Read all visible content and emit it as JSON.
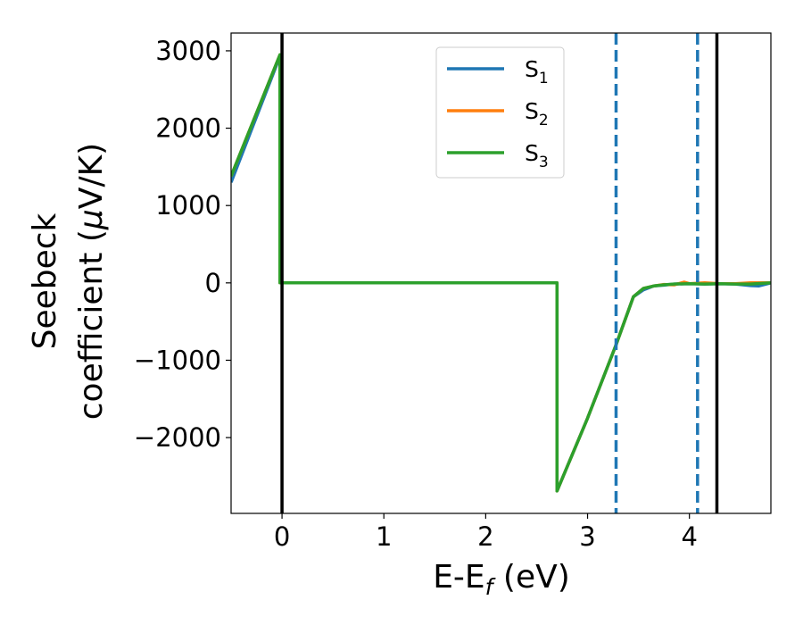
{
  "chart_data": {
    "type": "line",
    "xlabel": {
      "main": "E-E",
      "sub": "f",
      "unit": " (eV)"
    },
    "ylabel": {
      "line1": "Seebeck",
      "line2_prefix": "coefficient  (",
      "mu": "μ",
      "line2_suffix": "V/K)"
    },
    "xlim": [
      -0.5,
      4.8
    ],
    "ylim": [
      -2980,
      3230
    ],
    "xticks": [
      0,
      1,
      2,
      3,
      4
    ],
    "yticks": [
      -2000,
      -1000,
      0,
      1000,
      2000,
      3000
    ],
    "ytick_labels": [
      "−2000",
      "−1000",
      "0",
      "1000",
      "2000",
      "3000"
    ],
    "grid": false,
    "legend_position": "upper-center",
    "vlines_solid": [
      0,
      4.27
    ],
    "vlines_dashed": [
      3.28,
      4.08
    ],
    "vline_solid_color": "#000000",
    "vline_dashed_color": "#1f77b4",
    "series": [
      {
        "name": "S",
        "sub": "1",
        "color": "#1f77b4",
        "x": [
          -0.5,
          -0.02,
          -0.02,
          2.7,
          2.7,
          3.0,
          3.28,
          3.45,
          3.55,
          3.65,
          3.75,
          3.85,
          4.0,
          4.15,
          4.3,
          4.45,
          4.6,
          4.68,
          4.8
        ],
        "y": [
          1300,
          2930,
          0,
          0,
          -2690,
          -1750,
          -800,
          -180,
          -90,
          -40,
          -30,
          -15,
          -10,
          -15,
          -10,
          -15,
          -35,
          -40,
          0
        ]
      },
      {
        "name": "S",
        "sub": "2",
        "color": "#ff7f0e",
        "x": [
          -0.5,
          -0.02,
          -0.02,
          2.7,
          2.7,
          3.0,
          3.28,
          3.45,
          3.55,
          3.65,
          3.75,
          3.85,
          3.95,
          4.0,
          4.15,
          4.3,
          4.45,
          4.6,
          4.8
        ],
        "y": [
          1380,
          2950,
          0,
          0,
          -2690,
          -1750,
          -800,
          -180,
          -70,
          -40,
          -20,
          -25,
          10,
          -10,
          0,
          -10,
          -10,
          0,
          0
        ]
      },
      {
        "name": "S",
        "sub": "3",
        "color": "#2ca02c",
        "x": [
          -0.5,
          -0.02,
          -0.02,
          2.7,
          2.7,
          3.0,
          3.28,
          3.45,
          3.55,
          3.65,
          3.75,
          3.85,
          4.0,
          4.15,
          4.3,
          4.45,
          4.6,
          4.8
        ],
        "y": [
          1380,
          2950,
          0,
          0,
          -2690,
          -1750,
          -800,
          -180,
          -70,
          -40,
          -25,
          -15,
          -10,
          -15,
          -10,
          -15,
          -15,
          0
        ]
      }
    ]
  }
}
